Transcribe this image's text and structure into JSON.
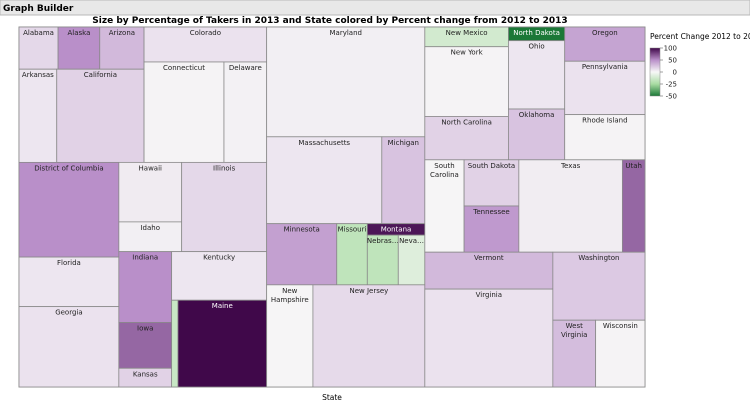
{
  "header": {
    "title": "Graph Builder"
  },
  "chart_data": {
    "type": "treemap",
    "title": "Size by Percentage of Takers in 2013 and State colored by Percent change from 2012 to 2013",
    "x_label": "State",
    "categories": [
      "Alabama",
      "Alaska",
      "Arizona",
      "Arkansas",
      "California",
      "Colorado",
      "Connecticut",
      "Delaware",
      "District of Columbia",
      "Florida",
      "Georgia",
      "Hawaii",
      "Idaho",
      "Illinois",
      "Indiana",
      "Iowa",
      "Kansas",
      "Kentucky",
      null,
      "Maine",
      "Maryland",
      "Massachusetts",
      "Michigan",
      "Minnesota",
      "Missouri",
      "Montana",
      "Nebras…",
      "Neva…",
      "New Hampshire",
      "New Jersey",
      "New Mexico",
      "New York",
      "North Carolina",
      "North Dakota",
      "Ohio",
      "Oklahoma",
      "Oregon",
      "Pennsylvania",
      "Rhode Island",
      "South Carolina",
      "South Dakota",
      "Tennessee",
      "Texas",
      "Utah",
      "Vermont",
      "Virginia",
      "Washington",
      "West Virginia",
      "Wisconsin"
    ],
    "values": [
      15,
      16,
      17,
      32,
      74,
      39,
      73,
      39,
      86,
      45,
      73,
      34,
      17,
      69,
      34,
      22,
      9,
      42,
      5,
      70,
      158,
      91,
      34,
      39,
      17,
      6,
      14,
      12,
      43,
      104,
      15,
      53,
      33,
      7,
      35,
      26,
      25,
      39,
      33,
      33,
      23,
      23,
      87,
      19,
      43,
      114,
      57,
      26,
      30
    ],
    "color_values": [
      15,
      50,
      30,
      8,
      18,
      10,
      2,
      3,
      50,
      8,
      10,
      6,
      4,
      15,
      50,
      65,
      18,
      8,
      -15,
      100,
      4,
      8,
      25,
      42,
      -18,
      95,
      -18,
      -8,
      1,
      14,
      -12,
      2,
      18,
      -50,
      8,
      25,
      40,
      10,
      2,
      1,
      18,
      45,
      5,
      65,
      30,
      10,
      22,
      28,
      2
    ],
    "legend": {
      "title": "Percent Change 2012 to 2013",
      "ticks": [
        100,
        50,
        0,
        -25,
        -50
      ],
      "colors": [
        "#40084a",
        "#b98fc9",
        "#f7f7f7",
        "#a9dca3",
        "#1b7837"
      ]
    }
  }
}
